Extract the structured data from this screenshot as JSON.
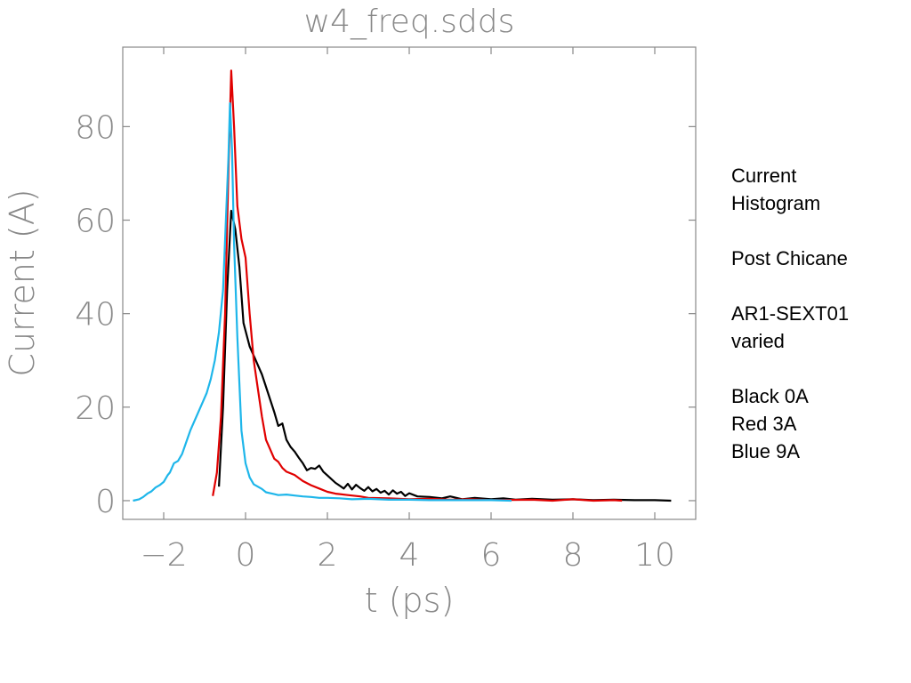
{
  "chart_data": {
    "type": "line",
    "title": "w4_freq.sdds",
    "xlabel": "t (ps)",
    "ylabel": "Current (A)",
    "xlim": [
      -3.0,
      11.0
    ],
    "ylim": [
      -4.0,
      97.0
    ],
    "x_ticks": [
      -2,
      0,
      2,
      4,
      6,
      8,
      10
    ],
    "y_ticks": [
      0,
      20,
      40,
      60,
      80
    ],
    "grid": false,
    "legend": "none",
    "series": [
      {
        "color": "#000000",
        "points": [
          [
            -0.65,
            3
          ],
          [
            -0.55,
            20
          ],
          [
            -0.45,
            45
          ],
          [
            -0.35,
            62
          ],
          [
            -0.25,
            58
          ],
          [
            -0.15,
            50
          ],
          [
            -0.05,
            38
          ],
          [
            0.1,
            33
          ],
          [
            0.25,
            30
          ],
          [
            0.4,
            27
          ],
          [
            0.55,
            23
          ],
          [
            0.7,
            19
          ],
          [
            0.8,
            16
          ],
          [
            0.9,
            16.5
          ],
          [
            1.0,
            13
          ],
          [
            1.1,
            11.5
          ],
          [
            1.2,
            10.5
          ],
          [
            1.3,
            9.2
          ],
          [
            1.4,
            8
          ],
          [
            1.5,
            6.5
          ],
          [
            1.6,
            7
          ],
          [
            1.7,
            6.8
          ],
          [
            1.8,
            7.5
          ],
          [
            1.9,
            6.2
          ],
          [
            2.0,
            5.4
          ],
          [
            2.1,
            4.6
          ],
          [
            2.2,
            3.8
          ],
          [
            2.3,
            3.2
          ],
          [
            2.4,
            2.6
          ],
          [
            2.5,
            3.6
          ],
          [
            2.6,
            2.4
          ],
          [
            2.7,
            3.4
          ],
          [
            2.8,
            2.7
          ],
          [
            2.9,
            2.1
          ],
          [
            3.0,
            2.9
          ],
          [
            3.1,
            2.0
          ],
          [
            3.2,
            2.5
          ],
          [
            3.3,
            1.7
          ],
          [
            3.4,
            2.1
          ],
          [
            3.5,
            1.3
          ],
          [
            3.6,
            2.2
          ],
          [
            3.7,
            1.5
          ],
          [
            3.8,
            1.9
          ],
          [
            3.9,
            1.0
          ],
          [
            4.0,
            1.6
          ],
          [
            4.2,
            0.9
          ],
          [
            4.5,
            0.8
          ],
          [
            4.8,
            0.5
          ],
          [
            5.0,
            0.9
          ],
          [
            5.3,
            0.3
          ],
          [
            5.6,
            0.6
          ],
          [
            6.0,
            0.3
          ],
          [
            6.3,
            0.5
          ],
          [
            6.6,
            0.2
          ],
          [
            7.0,
            0.4
          ],
          [
            7.5,
            0.2
          ],
          [
            8.0,
            0.3
          ],
          [
            8.5,
            0.1
          ],
          [
            9.0,
            0.2
          ],
          [
            9.5,
            0.1
          ],
          [
            10.0,
            0.1
          ],
          [
            10.4,
            0.0
          ]
        ]
      },
      {
        "color": "#e00000",
        "points": [
          [
            -0.8,
            1
          ],
          [
            -0.7,
            6
          ],
          [
            -0.6,
            18
          ],
          [
            -0.5,
            40
          ],
          [
            -0.42,
            70
          ],
          [
            -0.35,
            92
          ],
          [
            -0.28,
            80
          ],
          [
            -0.2,
            63
          ],
          [
            -0.1,
            56
          ],
          [
            0.0,
            52
          ],
          [
            0.1,
            40
          ],
          [
            0.2,
            30
          ],
          [
            0.3,
            24
          ],
          [
            0.4,
            18
          ],
          [
            0.5,
            13
          ],
          [
            0.6,
            11
          ],
          [
            0.7,
            9
          ],
          [
            0.8,
            8.3
          ],
          [
            0.9,
            7
          ],
          [
            1.0,
            6.2
          ],
          [
            1.2,
            5.5
          ],
          [
            1.4,
            4.2
          ],
          [
            1.6,
            3.3
          ],
          [
            1.8,
            2.6
          ],
          [
            2.0,
            1.9
          ],
          [
            2.2,
            1.5
          ],
          [
            2.5,
            1.2
          ],
          [
            2.8,
            0.9
          ],
          [
            3.0,
            0.6
          ],
          [
            3.5,
            0.5
          ],
          [
            4.0,
            0.3
          ],
          [
            4.5,
            0.4
          ],
          [
            5.0,
            0.2
          ],
          [
            5.5,
            0.3
          ],
          [
            6.0,
            0.1
          ],
          [
            7.0,
            0.2
          ],
          [
            7.5,
            0.0
          ],
          [
            8.0,
            0.3
          ],
          [
            8.5,
            0.0
          ],
          [
            9.0,
            0.1
          ],
          [
            9.2,
            0.0
          ]
        ]
      },
      {
        "color": "#1eb6ea",
        "points": [
          [
            -2.75,
            0
          ],
          [
            -2.6,
            0.3
          ],
          [
            -2.5,
            0.8
          ],
          [
            -2.4,
            1.5
          ],
          [
            -2.3,
            2.0
          ],
          [
            -2.2,
            2.8
          ],
          [
            -2.1,
            3.3
          ],
          [
            -2.0,
            4.0
          ],
          [
            -1.9,
            5.5
          ],
          [
            -1.85,
            6.0
          ],
          [
            -1.75,
            8.0
          ],
          [
            -1.65,
            8.5
          ],
          [
            -1.55,
            10.0
          ],
          [
            -1.45,
            12.5
          ],
          [
            -1.35,
            15.0
          ],
          [
            -1.25,
            17.0
          ],
          [
            -1.15,
            19.0
          ],
          [
            -1.05,
            21.0
          ],
          [
            -0.95,
            23.0
          ],
          [
            -0.85,
            26.0
          ],
          [
            -0.75,
            30.0
          ],
          [
            -0.65,
            36.0
          ],
          [
            -0.55,
            45.0
          ],
          [
            -0.48,
            60.0
          ],
          [
            -0.42,
            73.0
          ],
          [
            -0.38,
            85.0
          ],
          [
            -0.33,
            75.0
          ],
          [
            -0.28,
            55.0
          ],
          [
            -0.2,
            35.0
          ],
          [
            -0.1,
            15.0
          ],
          [
            0.0,
            8.0
          ],
          [
            0.1,
            5.0
          ],
          [
            0.2,
            3.5
          ],
          [
            0.3,
            3.0
          ],
          [
            0.4,
            2.5
          ],
          [
            0.5,
            1.8
          ],
          [
            0.6,
            1.6
          ],
          [
            0.7,
            1.4
          ],
          [
            0.8,
            1.2
          ],
          [
            1.0,
            1.3
          ],
          [
            1.2,
            1.1
          ],
          [
            1.4,
            0.9
          ],
          [
            1.6,
            0.8
          ],
          [
            1.8,
            0.6
          ],
          [
            2.0,
            0.6
          ],
          [
            2.3,
            0.5
          ],
          [
            2.6,
            0.3
          ],
          [
            3.0,
            0.4
          ],
          [
            3.5,
            0.2
          ],
          [
            4.0,
            0.2
          ],
          [
            4.5,
            0.1
          ],
          [
            5.0,
            0.1
          ],
          [
            5.5,
            0.1
          ],
          [
            6.0,
            0.1
          ],
          [
            6.5,
            0.0
          ]
        ]
      }
    ]
  },
  "annotations": [
    "Current",
    "Histogram",
    "",
    "Post Chicane",
    "",
    "AR1-SEXT01",
    "varied",
    "",
    "Black 0A",
    "Red 3A",
    "Blue 9A"
  ]
}
